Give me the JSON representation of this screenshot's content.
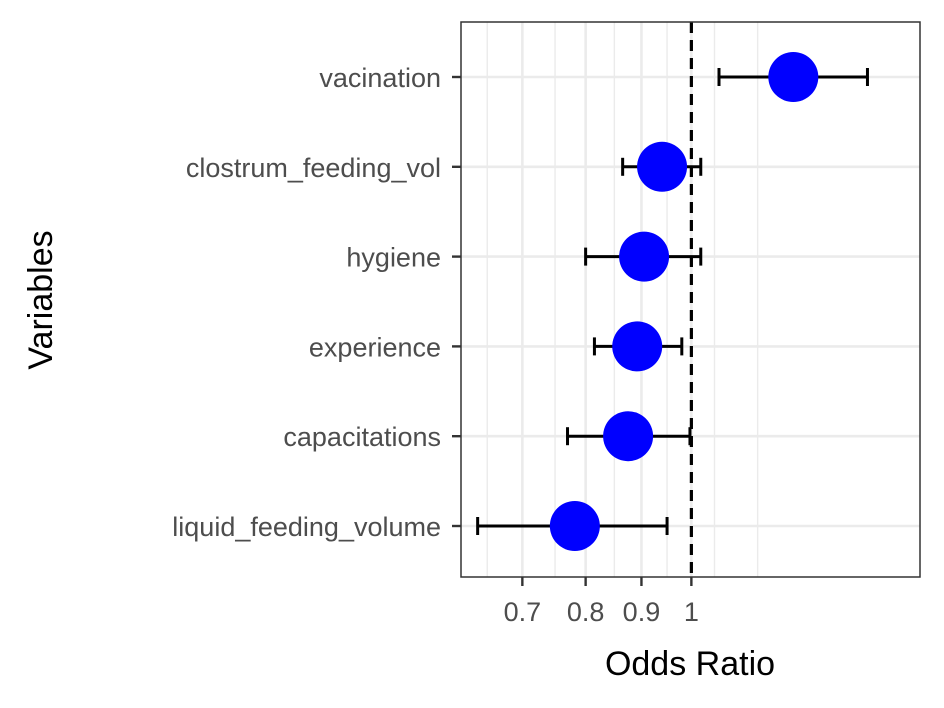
{
  "chart_data": {
    "type": "forest",
    "xlabel": "Odds Ratio",
    "ylabel": "Variables",
    "x_scale": "log",
    "xlim": [
      0.615,
      1.62
    ],
    "x_ticks": [
      0.7,
      0.8,
      0.9,
      1
    ],
    "x_tick_labels": [
      "0.7",
      "0.8",
      "0.9",
      "1"
    ],
    "x_minor_ticks": [
      0.65,
      0.75,
      0.85,
      0.95,
      1.05,
      1.15
    ],
    "reference_line": 1,
    "grid": true,
    "point_color": "#0000ff",
    "line_color": "#000000",
    "variables": [
      {
        "label": "vacination",
        "odds_ratio": 1.24,
        "lower": 1.06,
        "upper": 1.45
      },
      {
        "label": "clostrum_feeding_vol",
        "odds_ratio": 0.94,
        "lower": 0.865,
        "upper": 1.02
      },
      {
        "label": "hygiene",
        "odds_ratio": 0.905,
        "lower": 0.8,
        "upper": 1.02
      },
      {
        "label": "experience",
        "odds_ratio": 0.892,
        "lower": 0.815,
        "upper": 0.98
      },
      {
        "label": "capacitations",
        "odds_ratio": 0.875,
        "lower": 0.77,
        "upper": 0.997
      },
      {
        "label": "liquid_feeding_volume",
        "odds_ratio": 0.782,
        "lower": 0.637,
        "upper": 0.95
      }
    ]
  }
}
